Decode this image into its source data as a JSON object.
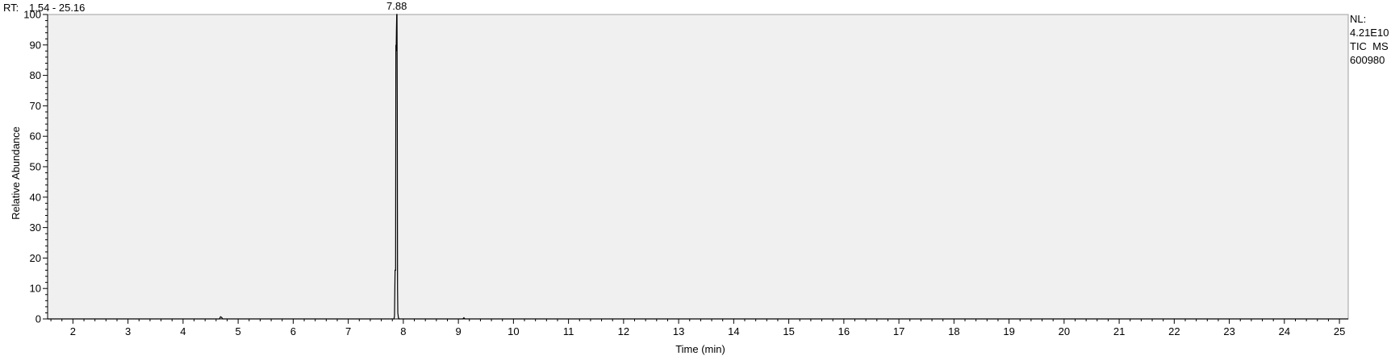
{
  "header": {
    "rt_label": "RT:",
    "rt_range": "1.54 - 25.16",
    "rt_color": "#1a1aa6"
  },
  "info": {
    "nl_label": "NL:",
    "nl_value": "4.21E10",
    "scan_type": "TIC  MS",
    "file_id": "600980"
  },
  "chart_data": {
    "type": "line",
    "xlabel": "Time (min)",
    "ylabel": "Relative Abundance",
    "xlim": [
      1.54,
      25.16
    ],
    "ylim": [
      0,
      100
    ],
    "x_ticks": [
      2,
      3,
      4,
      5,
      6,
      7,
      8,
      9,
      10,
      11,
      12,
      13,
      14,
      15,
      16,
      17,
      18,
      19,
      20,
      21,
      22,
      23,
      24,
      25
    ],
    "y_ticks": [
      0,
      10,
      20,
      30,
      40,
      50,
      60,
      70,
      80,
      90,
      100
    ],
    "grid": false,
    "plot_bg": "#f0f0f0",
    "line_color": "#000000",
    "series": [
      {
        "x": [
          1.54,
          4.66,
          4.68,
          4.7,
          4.72,
          7.83,
          7.84,
          7.85,
          7.86,
          7.865,
          7.87,
          7.875,
          7.88,
          7.885,
          7.89,
          7.895,
          7.9,
          7.91,
          7.92,
          9.08,
          9.1,
          9.12,
          25.16
        ],
        "y": [
          0,
          0,
          0.7,
          0.5,
          0,
          0,
          1,
          16,
          16,
          90,
          88,
          95,
          100,
          100,
          70,
          10,
          2,
          0.5,
          0,
          0,
          0.4,
          0,
          0
        ]
      }
    ],
    "annotations": [
      {
        "x": 7.88,
        "y": 100,
        "text": "7.88"
      }
    ]
  }
}
